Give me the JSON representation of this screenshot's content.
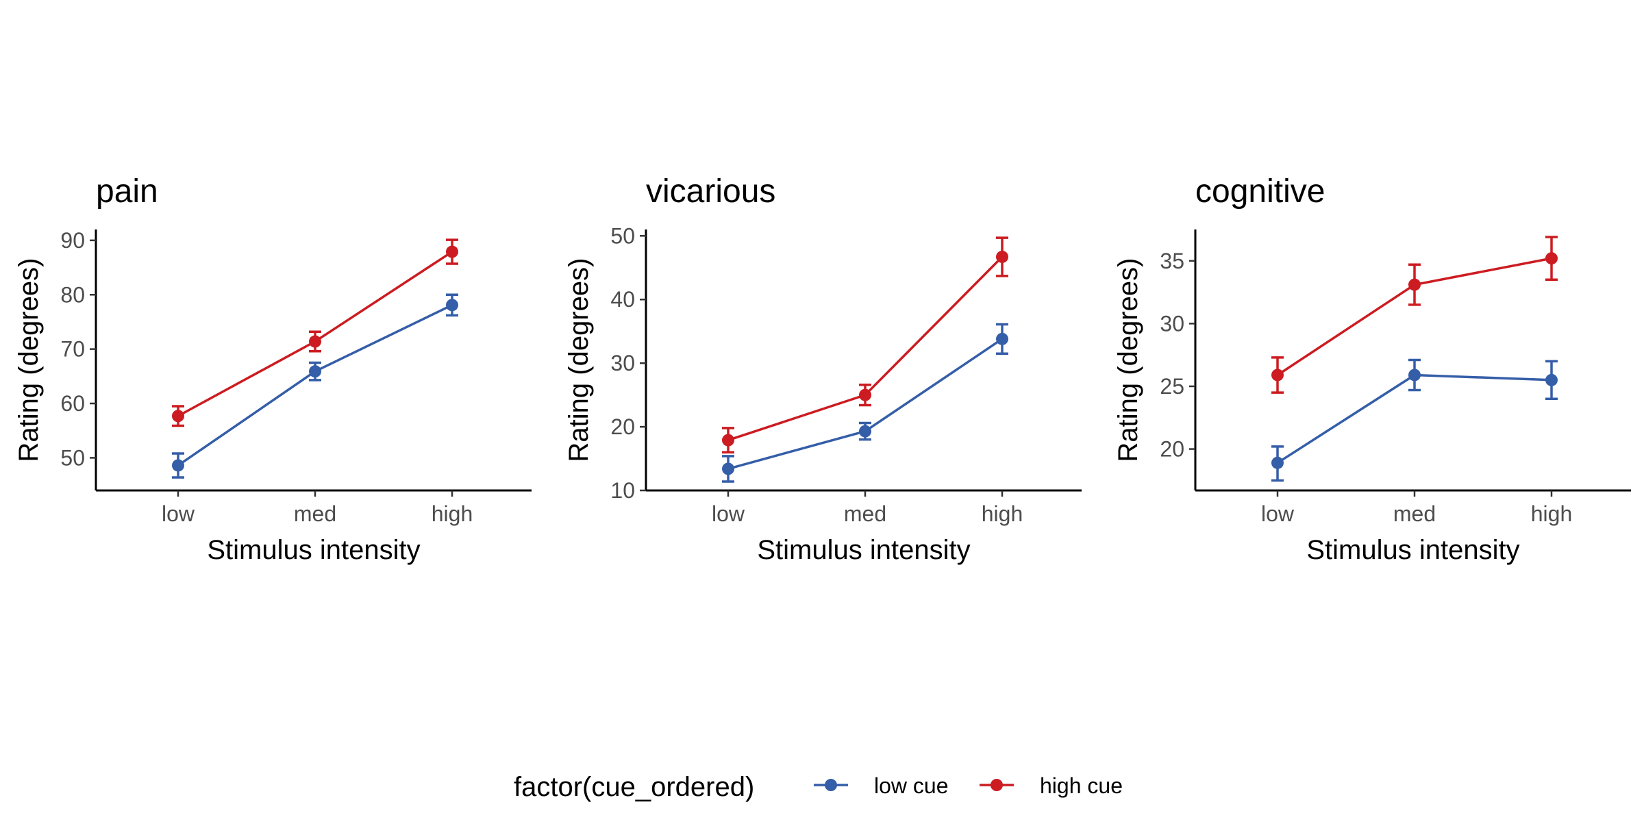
{
  "legend": {
    "title": "factor(cue_ordered)",
    "position": "bottom"
  },
  "chart_data": [
    {
      "type": "line",
      "title": "pain",
      "xlabel": "Stimulus intensity",
      "ylabel": "Rating (degrees)",
      "categories": [
        "low",
        "med",
        "high"
      ],
      "ylim": [
        44,
        92
      ],
      "yticks": [
        50,
        60,
        70,
        80,
        90
      ],
      "grid": false,
      "series": [
        {
          "name": "low cue",
          "color": "#355ea8",
          "values": [
            48.6,
            65.9,
            78.1
          ],
          "err_low": [
            46.4,
            64.3,
            76.2
          ],
          "err_high": [
            50.8,
            67.5,
            80.0
          ]
        },
        {
          "name": "high cue",
          "color": "#cc1c21",
          "values": [
            57.7,
            71.4,
            87.9
          ],
          "err_low": [
            55.9,
            69.6,
            85.7
          ],
          "err_high": [
            59.5,
            73.2,
            90.1
          ]
        }
      ]
    },
    {
      "type": "line",
      "title": "vicarious",
      "xlabel": "Stimulus intensity",
      "ylabel": "Rating (degrees)",
      "categories": [
        "low",
        "med",
        "high"
      ],
      "ylim": [
        10,
        51
      ],
      "yticks": [
        10,
        20,
        30,
        40,
        50
      ],
      "grid": false,
      "series": [
        {
          "name": "low cue",
          "color": "#355ea8",
          "values": [
            13.4,
            19.3,
            33.8
          ],
          "err_low": [
            11.4,
            18.0,
            31.5
          ],
          "err_high": [
            15.4,
            20.6,
            36.1
          ]
        },
        {
          "name": "high cue",
          "color": "#cc1c21",
          "values": [
            17.9,
            25.0,
            46.7
          ],
          "err_low": [
            16.0,
            23.4,
            43.7
          ],
          "err_high": [
            19.8,
            26.6,
            49.7
          ]
        }
      ]
    },
    {
      "type": "line",
      "title": "cognitive",
      "xlabel": "Stimulus intensity",
      "ylabel": "Rating (degrees)",
      "categories": [
        "low",
        "med",
        "high"
      ],
      "ylim": [
        16.7,
        37.5
      ],
      "yticks": [
        20,
        25,
        30,
        35
      ],
      "grid": false,
      "series": [
        {
          "name": "low cue",
          "color": "#355ea8",
          "values": [
            18.9,
            25.9,
            25.5
          ],
          "err_low": [
            17.5,
            24.7,
            24.0
          ],
          "err_high": [
            20.2,
            27.1,
            27.0
          ]
        },
        {
          "name": "high cue",
          "color": "#cc1c21",
          "values": [
            25.9,
            33.1,
            35.2
          ],
          "err_low": [
            24.5,
            31.5,
            33.5
          ],
          "err_high": [
            27.3,
            34.7,
            36.9
          ]
        }
      ]
    }
  ]
}
